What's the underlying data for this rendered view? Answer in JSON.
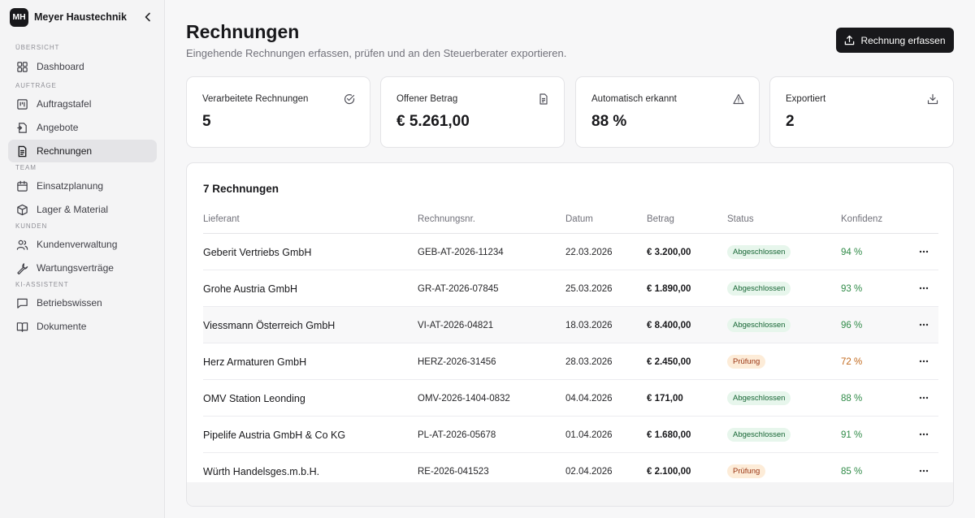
{
  "sidebar": {
    "brand_initials": "MH",
    "brand_name": "Meyer Haustechnik",
    "sections": {
      "overview": "Übersicht",
      "orders": "Aufträge",
      "team": "Team",
      "customers": "Kunden",
      "ai": "KI-Assistent"
    },
    "items": {
      "dashboard": "Dashboard",
      "order_board": "Auftragstafel",
      "quotes": "Angebote",
      "invoices": "Rechnungen",
      "scheduling": "Einsatzplanung",
      "inventory": "Lager & Material",
      "customers": "Kundenverwaltung",
      "contracts": "Wartungsverträge",
      "knowledge": "Betriebswissen",
      "documents": "Dokumente"
    }
  },
  "header": {
    "title": "Rechnungen",
    "subtitle": "Eingehende Rechnungen erfassen, prüfen und an den Steuerberater exportieren.",
    "primary_action": "Rechnung erfassen"
  },
  "stats": {
    "processed": {
      "label": "Verarbeitete Rechnungen",
      "value": "5",
      "icon": "check-circle-icon"
    },
    "open_amount": {
      "label": "Offener Betrag",
      "value": "€ 5.261,00",
      "icon": "document-icon"
    },
    "auto": {
      "label": "Automatisch erkannt",
      "value": "88 %",
      "icon": "warning-icon"
    },
    "exported": {
      "label": "Exportiert",
      "value": "2",
      "icon": "download-icon"
    }
  },
  "table": {
    "title": "7 Rechnungen",
    "columns": {
      "vendor": "Lieferant",
      "number": "Rechnungsnr.",
      "date": "Datum",
      "amount": "Betrag",
      "status": "Status",
      "confidence": "Konfidenz"
    },
    "rows": [
      {
        "vendor": "Geberit Vertriebs GmbH",
        "number": "GEB-AT-2026-11234",
        "date": "22.03.2026",
        "amount": "€ 3.200,00",
        "status": "Abgeschlossen",
        "confidence": "94 %"
      },
      {
        "vendor": "Grohe Austria GmbH",
        "number": "GR-AT-2026-07845",
        "date": "25.03.2026",
        "amount": "€ 1.890,00",
        "status": "Abgeschlossen",
        "confidence": "93 %"
      },
      {
        "vendor": "Viessmann Österreich GmbH",
        "number": "VI-AT-2026-04821",
        "date": "18.03.2026",
        "amount": "€ 8.400,00",
        "status": "Abgeschlossen",
        "confidence": "96 %"
      },
      {
        "vendor": "Herz Armaturen GmbH",
        "number": "HERZ-2026-31456",
        "date": "28.03.2026",
        "amount": "€ 2.450,00",
        "status": "Prüfung",
        "confidence": "72 %"
      },
      {
        "vendor": "OMV Station Leonding",
        "number": "OMV-2026-1404-0832",
        "date": "04.04.2026",
        "amount": "€ 171,00",
        "status": "Abgeschlossen",
        "confidence": "88 %"
      },
      {
        "vendor": "Pipelife Austria GmbH & Co KG",
        "number": "PL-AT-2026-05678",
        "date": "01.04.2026",
        "amount": "€ 1.680,00",
        "status": "Abgeschlossen",
        "confidence": "91 %"
      },
      {
        "vendor": "Würth Handelsges.m.b.H.",
        "number": "RE-2026-041523",
        "date": "02.04.2026",
        "amount": "€ 2.100,00",
        "status": "Prüfung",
        "confidence": "85 %"
      }
    ]
  },
  "colors": {
    "primary": "#18181b",
    "done_badge_bg": "#e7f6ec",
    "done_badge_text": "#166534",
    "review_badge_bg": "#fdecd8",
    "review_badge_text": "#9a3412",
    "confidence_good": "#2f8a47",
    "confidence_mid": "#c2691d"
  }
}
